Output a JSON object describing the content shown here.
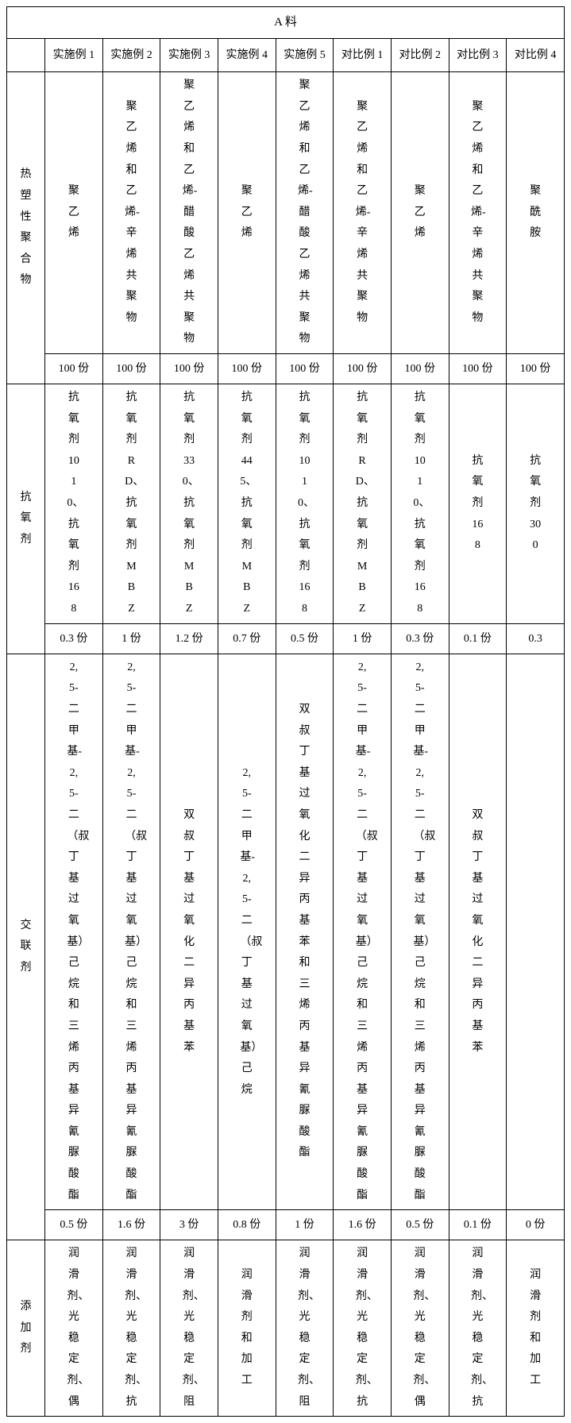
{
  "title": "A 料",
  "columns": [
    "实施例 1",
    "实施例 2",
    "实施例 3",
    "实施例 4",
    "实施例 5",
    "对比例 1",
    "对比例 2",
    "对比例 3",
    "对比例 4"
  ],
  "sections": {
    "polymer": {
      "label": "热塑性聚合物",
      "values": [
        "聚乙烯",
        "聚乙烯和乙烯-辛烯共聚物",
        "聚乙烯和乙烯-醋酸乙烯共聚物",
        "聚乙烯",
        "聚乙烯和乙烯-醋酸乙烯共聚物",
        "聚乙烯和乙烯-辛烯共聚物",
        "聚乙烯",
        "聚乙烯和乙烯-辛烯共聚物",
        "聚酰胺"
      ],
      "amounts": [
        "100 份",
        "100 份",
        "100 份",
        "100 份",
        "100 份",
        "100 份",
        "100 份",
        "100 份",
        "100 份"
      ]
    },
    "antiox": {
      "label": "抗氧剂",
      "values": [
        "抗氧剂1010、抗氧剂168",
        "抗氧剂RD、抗氧剂MBZ",
        "抗氧剂330、抗氧剂MBZ",
        "抗氧剂445、抗氧剂MBZ",
        "抗氧剂1010、抗氧剂168",
        "抗氧剂RD、抗氧剂MBZ",
        "抗氧剂1010、抗氧剂168",
        "抗氧剂168",
        "抗氧剂300"
      ],
      "amounts": [
        "0.3 份",
        "1 份",
        "1.2 份",
        "0.7 份",
        "0.5 份",
        "1 份",
        "0.3 份",
        "0.1 份",
        "0.3"
      ]
    },
    "crosslink": {
      "label": "交联剂",
      "values": [
        "2,5-二甲基-2,5-二（叔丁基过氧基）己烷和三烯丙基异氰脲酸酯",
        "2,5-二甲基-2,5-二（叔丁基过氧基）己烷和三烯丙基异氰脲酸酯",
        "双叔丁基过氧化二异丙基苯",
        "2,5-二甲基-2,5-二（叔丁基过氧基）己烷",
        "双叔丁基过氧化二异丙基苯和三烯丙基异氰脲酸酯",
        "2,5-二甲基-2,5-二（叔丁基过氧基）己烷和三烯丙基异氰脲酸酯",
        "2,5-二甲基-2,5-二（叔丁基过氧基）己烷和三烯丙基异氰脲酸酯",
        "双叔丁基过氧化二异丙基苯",
        ""
      ],
      "amounts": [
        "0.5 份",
        "1.6 份",
        "3 份",
        "0.8 份",
        "1 份",
        "1.6 份",
        "0.5 份",
        "0.1 份",
        "0 份"
      ]
    },
    "additive": {
      "label": "添加剂",
      "values": [
        "润滑剂、光稳定剂、偶",
        "润滑剂、光稳定剂、抗",
        "润滑剂、光稳定剂、阻",
        "润滑剂和加工",
        "润滑剂、光稳定剂、阻",
        "润滑剂、光稳定剂、抗",
        "润滑剂、光稳定剂、偶",
        "润滑剂、光稳定剂、抗",
        "润滑剂和加工"
      ]
    }
  },
  "colors": {
    "border": "#000000",
    "background": "#ffffff",
    "text": "#000000"
  }
}
